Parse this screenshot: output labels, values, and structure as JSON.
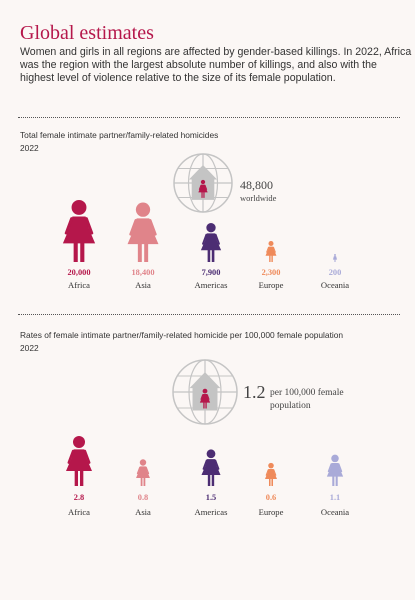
{
  "page": {
    "title": "Global estimates",
    "intro_lines": [
      "Women and girls in all regions are affected by gender-based killings. In 2022, Africa",
      "was the region with the largest absolute number of killings, and also with the",
      "highest level of violence relative to the size of its female population."
    ]
  },
  "colors": {
    "Africa": "#b5174b",
    "Asia": "#e0848a",
    "Americas": "#4c2d73",
    "Europe": "#ef8a5a",
    "Oceania": "#a9aad8",
    "globe": "#c4c4c4"
  },
  "chart_data": [
    {
      "type": "pictogram",
      "title": "Total female intimate partner/family-related homicides",
      "subtitle": "2022",
      "categories": [
        "Africa",
        "Asia",
        "Americas",
        "Europe",
        "Oceania"
      ],
      "values": [
        20000,
        18400,
        7900,
        2300,
        200
      ],
      "value_labels": [
        "20,000",
        "18,400",
        "7,900",
        "2,300",
        "200"
      ],
      "total": {
        "value_label": "48,800",
        "caption": "worldwide"
      }
    },
    {
      "type": "pictogram",
      "title": "Rates of female intimate partner/family-related homicide per 100,000 female population",
      "subtitle": "2022",
      "categories": [
        "Africa",
        "Asia",
        "Americas",
        "Europe",
        "Oceania"
      ],
      "values": [
        2.8,
        0.8,
        1.5,
        0.6,
        1.1
      ],
      "value_labels": [
        "2.8",
        "0.8",
        "1.5",
        "0.6",
        "1.1"
      ],
      "total": {
        "value_label": "1.2",
        "caption_lines": [
          "per 100,000 female",
          "population"
        ]
      }
    }
  ]
}
